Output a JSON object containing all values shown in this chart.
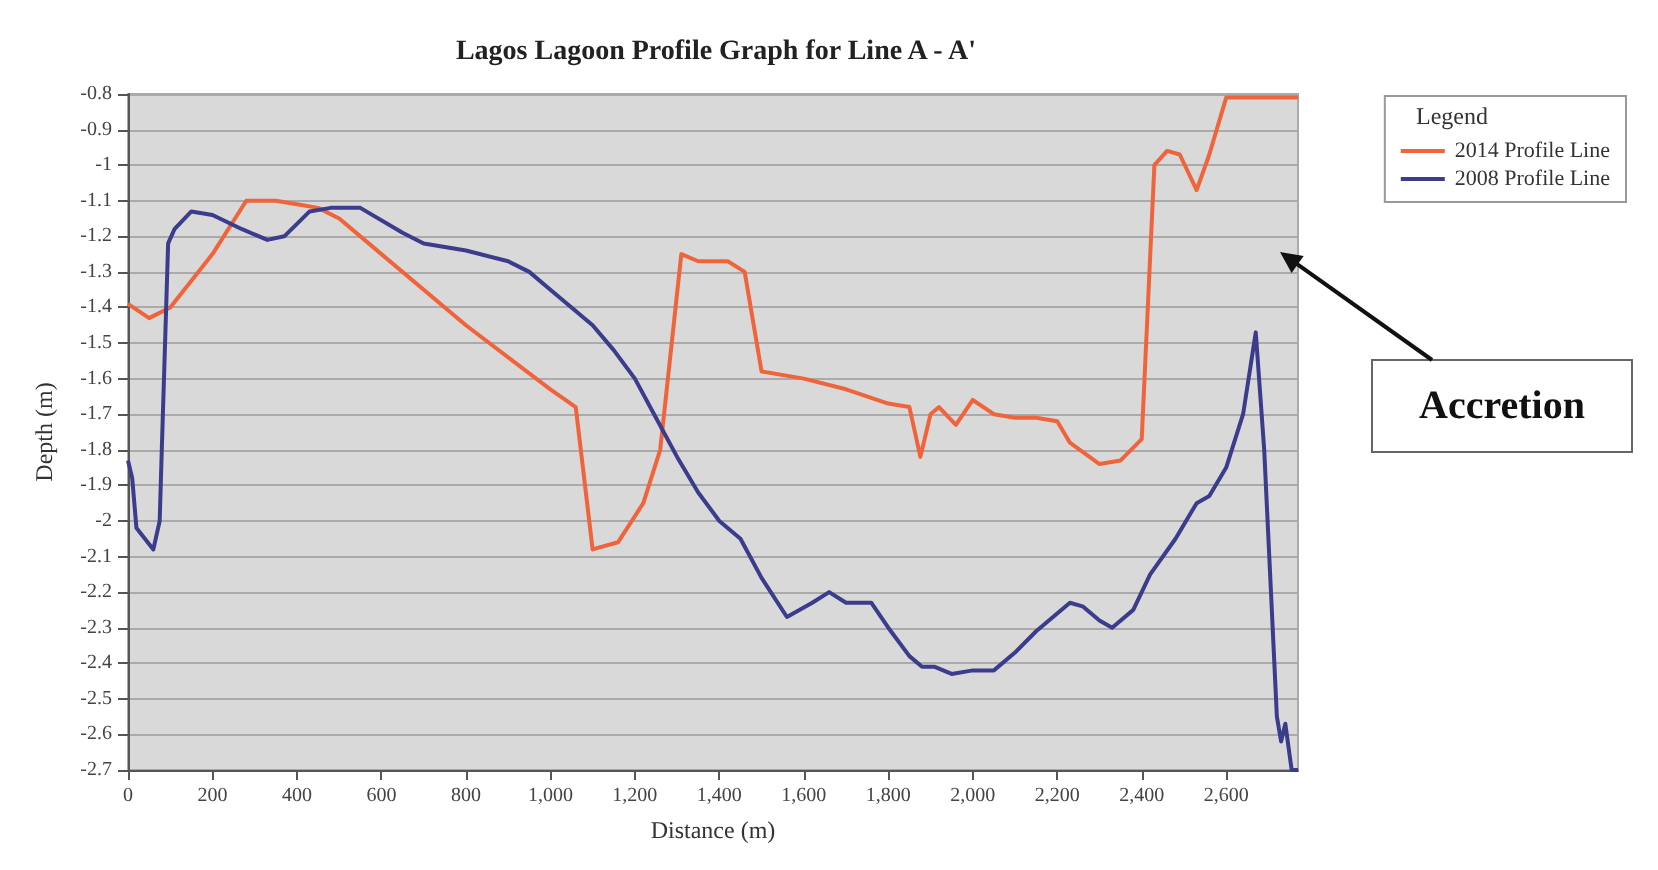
{
  "chart_data": {
    "type": "line",
    "title": "Lagos Lagoon Profile Graph for Line A - A'",
    "xlabel": "Distance (m)",
    "ylabel": "Depth (m)",
    "legend_title": "Legend",
    "legend": "top right",
    "grid": "y",
    "marker": "none",
    "line_style": "solid",
    "xlim": [
      0,
      2770
    ],
    "xticks": [
      0,
      200,
      400,
      600,
      800,
      {
        "value": 1000,
        "label": "1,000"
      },
      {
        "value": 1200,
        "label": "1,200"
      },
      {
        "value": 1400,
        "label": "1,400"
      },
      {
        "value": 1600,
        "label": "1,600"
      },
      {
        "value": 1800,
        "label": "1,800"
      },
      {
        "value": 2000,
        "label": "2,000"
      },
      {
        "value": 2200,
        "label": "2,200"
      },
      {
        "value": 2400,
        "label": "2,400"
      },
      {
        "value": 2600,
        "label": "2,600"
      }
    ],
    "ylim": [
      -2.7,
      -0.8
    ],
    "yticks": [
      -2.7,
      -2.6,
      -2.5,
      -2.4,
      -2.3,
      -2.2,
      -2.1,
      -2,
      -1.9,
      -1.8,
      -1.7,
      -1.6,
      -1.5,
      -1.4,
      -1.3,
      -1.2,
      -1.1,
      -1,
      -0.9,
      -0.8
    ],
    "annotations": [
      "Accretion"
    ],
    "series": [
      {
        "name": "2014 Profile Line",
        "color": "#f0643c",
        "x": [
          0,
          50,
          100,
          200,
          280,
          350,
          400,
          450,
          500,
          600,
          800,
          1000,
          1060,
          1100,
          1160,
          1220,
          1260,
          1310,
          1350,
          1420,
          1460,
          1500,
          1600,
          1700,
          1800,
          1850,
          1876,
          1900,
          1920,
          1960,
          2000,
          2050,
          2100,
          2150,
          2200,
          2230,
          2300,
          2350,
          2400,
          2430,
          2460,
          2490,
          2530,
          2560,
          2600,
          2770
        ],
        "values": [
          -1.39,
          -1.43,
          -1.4,
          -1.25,
          -1.1,
          -1.1,
          -1.11,
          -1.12,
          -1.15,
          -1.25,
          -1.45,
          -1.63,
          -1.68,
          -2.08,
          -2.06,
          -1.95,
          -1.8,
          -1.25,
          -1.27,
          -1.27,
          -1.3,
          -1.58,
          -1.6,
          -1.63,
          -1.67,
          -1.68,
          -1.82,
          -1.7,
          -1.68,
          -1.73,
          -1.66,
          -1.7,
          -1.71,
          -1.71,
          -1.72,
          -1.78,
          -1.84,
          -1.83,
          -1.77,
          -1.0,
          -0.96,
          -0.97,
          -1.07,
          -0.97,
          -0.81,
          -0.81
        ]
      },
      {
        "name": "2008 Profile Line",
        "color": "#3c3c8c",
        "x": [
          0,
          10,
          20,
          60,
          75,
          80,
          95,
          110,
          150,
          200,
          270,
          330,
          370,
          430,
          480,
          550,
          650,
          700,
          800,
          900,
          950,
          1000,
          1100,
          1150,
          1200,
          1250,
          1300,
          1350,
          1400,
          1450,
          1500,
          1560,
          1620,
          1660,
          1700,
          1760,
          1800,
          1850,
          1880,
          1910,
          1950,
          2000,
          2050,
          2100,
          2150,
          2230,
          2260,
          2300,
          2330,
          2380,
          2420,
          2480,
          2530,
          2560,
          2600,
          2640,
          2670,
          2690,
          2720,
          2730,
          2740,
          2755,
          2770
        ],
        "values": [
          -1.83,
          -1.88,
          -2.02,
          -2.08,
          -2.0,
          -1.8,
          -1.22,
          -1.18,
          -1.13,
          -1.14,
          -1.18,
          -1.21,
          -1.2,
          -1.13,
          -1.12,
          -1.12,
          -1.19,
          -1.22,
          -1.24,
          -1.27,
          -1.3,
          -1.35,
          -1.45,
          -1.52,
          -1.6,
          -1.71,
          -1.82,
          -1.92,
          -2.0,
          -2.05,
          -2.16,
          -2.27,
          -2.23,
          -2.2,
          -2.23,
          -2.23,
          -2.3,
          -2.38,
          -2.41,
          -2.41,
          -2.43,
          -2.42,
          -2.42,
          -2.37,
          -2.31,
          -2.23,
          -2.24,
          -2.28,
          -2.3,
          -2.25,
          -2.15,
          -2.05,
          -1.95,
          -1.93,
          -1.85,
          -1.7,
          -1.47,
          -1.8,
          -2.55,
          -2.62,
          -2.57,
          -2.7,
          -2.7
        ]
      }
    ]
  }
}
